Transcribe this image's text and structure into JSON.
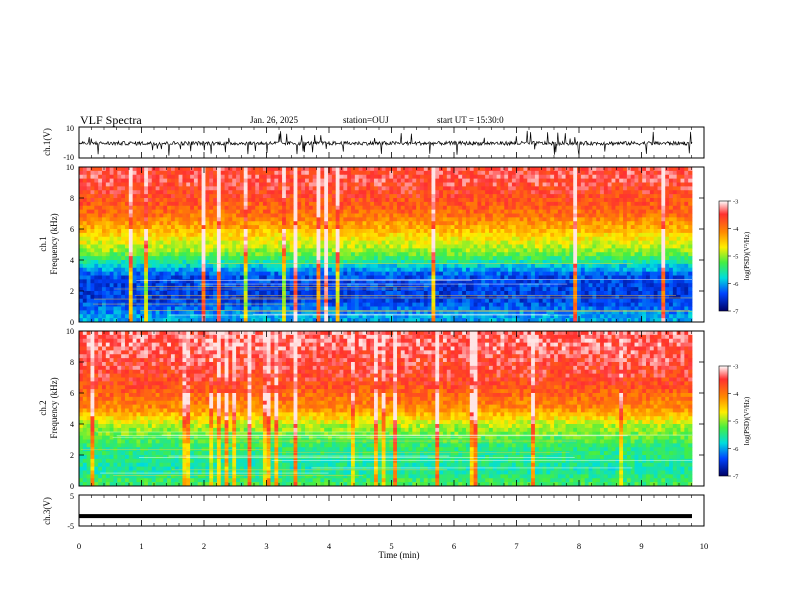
{
  "header": {
    "title": "VLF Spectra",
    "date": "Jan. 26, 2025",
    "station": "station=OUJ",
    "start": "start UT =  15:30:0"
  },
  "chart_data": {
    "type": "heatmap",
    "x_axis": {
      "label": "Time (min)",
      "range": [
        0,
        10
      ],
      "ticks": [
        "0",
        "1",
        "2",
        "3",
        "4",
        "5",
        "6",
        "7",
        "8",
        "9",
        "10"
      ]
    },
    "panels": [
      {
        "id": "ch1_waveform",
        "type": "line",
        "ylabel": "ch.1(V)",
        "ylim": [
          -10,
          10
        ],
        "y_ticks": [
          "10",
          "-10"
        ],
        "baseline": -0.5,
        "noise_band": [
          -3,
          2
        ]
      },
      {
        "id": "ch1_spectrogram",
        "type": "heatmap",
        "ylabel_line1": "ch.1",
        "ylabel_line2": "Frequency (kHz)",
        "ylim": [
          0,
          10
        ],
        "y_ticks": [
          "10",
          "8",
          "6",
          "4",
          "2",
          "0"
        ],
        "colorbar": {
          "label": "log(PSD)(V²/Hz)",
          "ticks": [
            "-3",
            "-4",
            "-5",
            "-6",
            "-7"
          ],
          "range": [
            -7,
            -3
          ]
        },
        "approx_profile": [
          {
            "freq_khz": 9,
            "log_psd": -3.4
          },
          {
            "freq_khz": 7,
            "log_psd": -3.8
          },
          {
            "freq_khz": 5.5,
            "log_psd": -4.5
          },
          {
            "freq_khz": 4.5,
            "log_psd": -5.0
          },
          {
            "freq_khz": 3,
            "log_psd": -6.4
          },
          {
            "freq_khz": 1.5,
            "log_psd": -6.5
          },
          {
            "freq_khz": 0.3,
            "log_psd": -6.0
          }
        ]
      },
      {
        "id": "ch2_spectrogram",
        "type": "heatmap",
        "ylabel_line1": "ch.2",
        "ylabel_line2": "Frequency (kHz)",
        "ylim": [
          0,
          10
        ],
        "y_ticks": [
          "10",
          "8",
          "6",
          "4",
          "2",
          "0"
        ],
        "colorbar": {
          "label": "log(PSD)(V²/Hz)",
          "ticks": [
            "-3",
            "-4",
            "-5",
            "-6",
            "-7"
          ],
          "range": [
            -7,
            -3
          ]
        },
        "approx_profile": [
          {
            "freq_khz": 9,
            "log_psd": -3.3
          },
          {
            "freq_khz": 7,
            "log_psd": -3.5
          },
          {
            "freq_khz": 5,
            "log_psd": -4.0
          },
          {
            "freq_khz": 4,
            "log_psd": -4.8
          },
          {
            "freq_khz": 2.5,
            "log_psd": -5.4
          },
          {
            "freq_khz": 1,
            "log_psd": -5.6
          },
          {
            "freq_khz": 0.3,
            "log_psd": -5.3
          }
        ]
      },
      {
        "id": "ch3_waveform",
        "type": "line",
        "ylabel": "ch.3(V)",
        "ylim": [
          -5,
          5
        ],
        "y_ticks": [
          "5",
          "-5"
        ],
        "baseline": -1.8
      }
    ]
  }
}
